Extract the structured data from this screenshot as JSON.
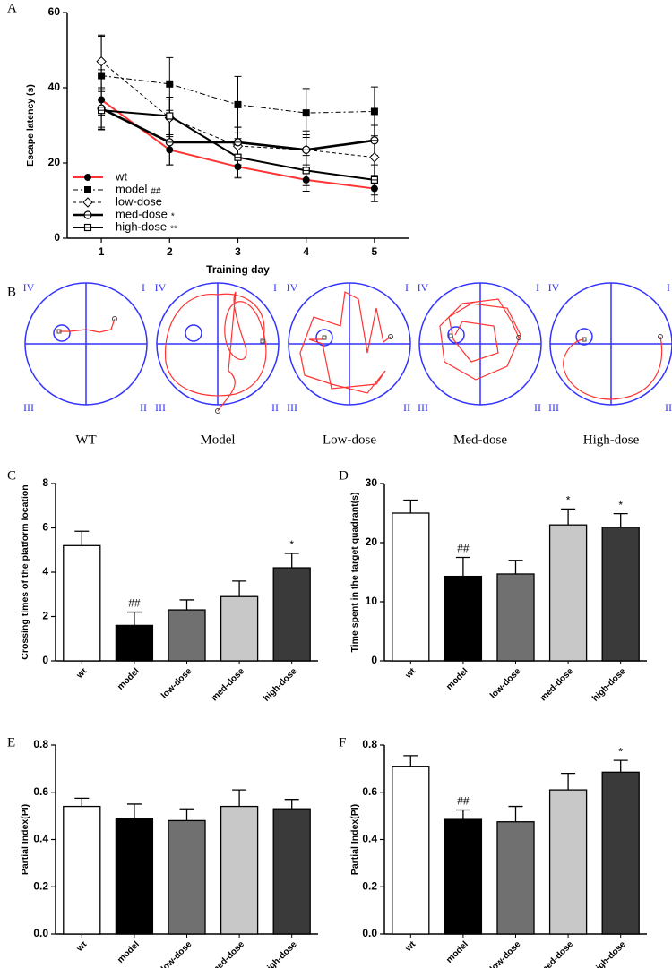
{
  "chart_data": [
    {
      "panel": "A",
      "type": "line",
      "xlabel": "Training day",
      "ylabel": "Escape latency (s)",
      "x": [
        1,
        2,
        3,
        4,
        5
      ],
      "xlim": [
        0.5,
        5.5
      ],
      "xticks": [
        1,
        2,
        3,
        4,
        5
      ],
      "ylim": [
        0,
        60
      ],
      "yticks": [
        0,
        20,
        40,
        60
      ],
      "legend": "lower left",
      "series": [
        {
          "name": "wt",
          "color": "#ff3333",
          "marker": "filled-circle",
          "linestyle": "solid",
          "values": [
            36.8,
            23.5,
            19,
            15.5,
            13.2
          ],
          "errors": [
            8,
            4,
            3,
            3,
            3.5
          ]
        },
        {
          "name": "model",
          "note": "##",
          "color": "#000000",
          "marker": "filled-square",
          "linestyle": "dashdot",
          "values": [
            43.2,
            41,
            35.5,
            33.3,
            33.7
          ],
          "errors": [
            10.5,
            7,
            7.5,
            6.5,
            6.5
          ]
        },
        {
          "name": "low-dose",
          "color": "#000000",
          "marker": "open-diamond",
          "linestyle": "dashed",
          "values": [
            47,
            32,
            24.5,
            23.5,
            21.5
          ],
          "errors": [
            7,
            5,
            5,
            5,
            5
          ]
        },
        {
          "name": "med-dose",
          "note": "*",
          "color": "#000000",
          "marker": "open-circle",
          "linestyle": "solid-thick",
          "values": [
            34.5,
            25.5,
            25.5,
            23.5,
            26
          ],
          "errors": [
            5,
            6,
            4,
            4,
            4
          ]
        },
        {
          "name": "high-dose",
          "note": "**",
          "color": "#000000",
          "marker": "open-square",
          "linestyle": "solid",
          "values": [
            34,
            32.5,
            21.5,
            18,
            15.5
          ],
          "errors": [
            5,
            5,
            5,
            4,
            4
          ]
        }
      ]
    },
    {
      "panel": "C",
      "type": "bar",
      "ylabel": "Crossing times of the platform location",
      "categories": [
        "wt",
        "model",
        "low-dose",
        "med-dose",
        "high-dose"
      ],
      "values": [
        5.2,
        1.6,
        2.3,
        2.9,
        4.2
      ],
      "errors": [
        0.65,
        0.6,
        0.45,
        0.7,
        0.65
      ],
      "annotations": [
        null,
        "##",
        null,
        null,
        "*"
      ],
      "colors": [
        "#ffffff",
        "#000000",
        "#707070",
        "#c8c8c8",
        "#3a3a3a"
      ],
      "ylim": [
        0,
        8
      ],
      "yticks": [
        0,
        2,
        4,
        6,
        8
      ]
    },
    {
      "panel": "D",
      "type": "bar",
      "ylabel": "Time spent in the target quadrant(s)",
      "categories": [
        "wt",
        "model",
        "low-dose",
        "med-dose",
        "high-dose"
      ],
      "values": [
        25,
        14.3,
        14.7,
        23,
        22.6
      ],
      "errors": [
        2.2,
        3.2,
        2.3,
        2.7,
        2.3
      ],
      "annotations": [
        null,
        "##",
        null,
        "*",
        "*"
      ],
      "colors": [
        "#ffffff",
        "#000000",
        "#707070",
        "#c8c8c8",
        "#3a3a3a"
      ],
      "ylim": [
        0,
        30
      ],
      "yticks": [
        0,
        10,
        20,
        30
      ]
    },
    {
      "panel": "E",
      "type": "bar",
      "ylabel": "Partial Index(PI)",
      "categories": [
        "wt",
        "model",
        "low-dose",
        "med-dose",
        "high-dose"
      ],
      "values": [
        0.54,
        0.49,
        0.48,
        0.54,
        0.53
      ],
      "errors": [
        0.035,
        0.06,
        0.05,
        0.07,
        0.04
      ],
      "colors": [
        "#ffffff",
        "#000000",
        "#707070",
        "#c8c8c8",
        "#3a3a3a"
      ],
      "ylim": [
        0,
        0.8
      ],
      "yticks": [
        {
          "value": 0,
          "label": "0.0"
        },
        0.2,
        0.4,
        0.6,
        0.8
      ]
    },
    {
      "panel": "F",
      "type": "bar",
      "ylabel": "Partial Index(PI)",
      "categories": [
        "wt",
        "model",
        "low-dose",
        "med-dose",
        "high-dose"
      ],
      "values": [
        0.71,
        0.485,
        0.475,
        0.61,
        0.685
      ],
      "errors": [
        0.045,
        0.04,
        0.065,
        0.07,
        0.05
      ],
      "annotations": [
        null,
        "##",
        null,
        null,
        "*"
      ],
      "colors": [
        "#ffffff",
        "#000000",
        "#707070",
        "#c8c8c8",
        "#3a3a3a"
      ],
      "ylim": [
        0,
        0.8
      ],
      "yticks": [
        {
          "value": 0,
          "label": "0.0"
        },
        0.2,
        0.4,
        0.6,
        0.8
      ]
    }
  ],
  "maze_panel": {
    "panel": "B",
    "quadrants": [
      "IV",
      "I",
      "III",
      "II"
    ],
    "labels": [
      "WT",
      "Model",
      "Low-dose",
      "Med-dose",
      "High-dose"
    ]
  }
}
